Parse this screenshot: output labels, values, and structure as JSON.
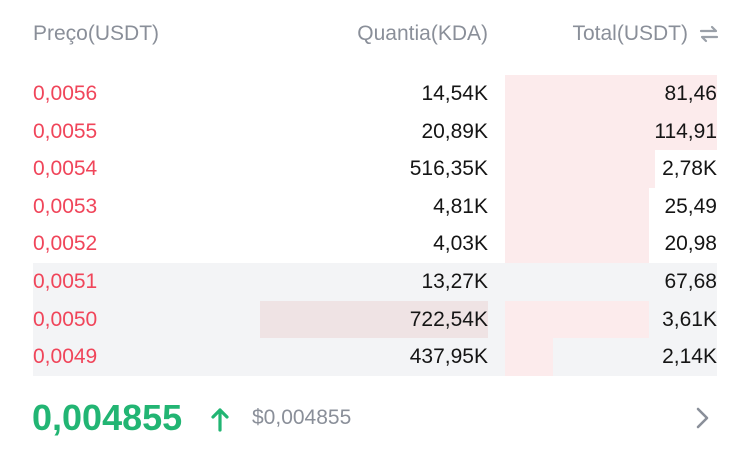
{
  "header": {
    "price_label": "Preço(USDT)",
    "quantity_label": "Quantia(KDA)",
    "total_label": "Total(USDT)",
    "swap_icon": "swap-arrows-icon"
  },
  "asks": [
    {
      "price": "0,0056",
      "quantity": "14,54K",
      "total": "81,46",
      "total_depth": 0.31,
      "quantity_depth": 0,
      "highlighted": false
    },
    {
      "price": "0,0055",
      "quantity": "20,89K",
      "total": "114,91",
      "total_depth": 0.31,
      "quantity_depth": 0,
      "highlighted": false
    },
    {
      "price": "0,0054",
      "quantity": "516,35K",
      "total": "2,78K",
      "total_depth": 0.22,
      "quantity_depth": 0,
      "highlighted": false
    },
    {
      "price": "0,0053",
      "quantity": "4,81K",
      "total": "25,49",
      "total_depth": 0.21,
      "quantity_depth": 0,
      "highlighted": false
    },
    {
      "price": "0,0052",
      "quantity": "4,03K",
      "total": "20,98",
      "total_depth": 0.21,
      "quantity_depth": 0,
      "highlighted": false
    },
    {
      "price": "0,0051",
      "quantity": "13,27K",
      "total": "67,68",
      "total_depth": 0,
      "quantity_depth": 0,
      "highlighted": true
    },
    {
      "price": "0,0050",
      "quantity": "722,54K",
      "total": "3,61K",
      "total_depth": 0.21,
      "quantity_depth": 1.0,
      "highlighted": true
    },
    {
      "price": "0,0049",
      "quantity": "437,95K",
      "total": "2,14K",
      "total_depth": 0.07,
      "quantity_depth": 0,
      "highlighted": true
    }
  ],
  "footer": {
    "last_price": "0,004855",
    "usd_price": "$0,004855",
    "trend_icon": "arrow-up-icon",
    "more_icon": "chevron-right-icon"
  },
  "colors": {
    "ask": "#f0455a",
    "bid": "#22b573",
    "muted": "#8a8f99",
    "depth": "#fcebec"
  }
}
